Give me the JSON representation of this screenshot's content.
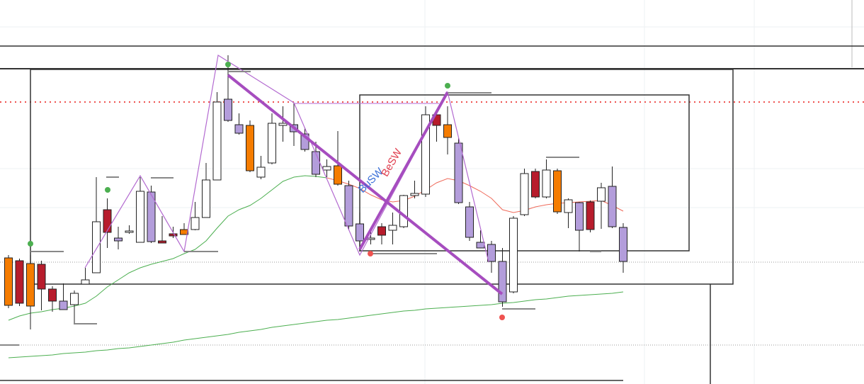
{
  "chart_data": {
    "type": "candlestick",
    "ylim": [
      0,
      542
    ],
    "candles": {
      "open": [
        178,
        174,
        170,
        169,
        134,
        117,
        112,
        141,
        157,
        246,
        206,
        214,
        200,
        271,
        202,
        212,
        218,
        218,
        235,
        288,
        402,
        366,
        365,
        292,
        312,
        365,
        366,
        353,
        328,
        302,
        308,
        280,
        226,
        204,
        222,
        217,
        222,
        266,
        268,
        380,
        366,
        340,
        250,
        200,
        197,
        173,
        130,
        239,
        300,
        264,
        301,
        242,
        256,
        257,
        258,
        279,
        221
      ],
      "high": [
        182,
        177,
        182,
        174,
        138,
        142,
        132,
        164,
        292,
        262,
        222,
        224,
        292,
        280,
        237,
        222,
        227,
        257,
        312,
        412,
        464,
        382,
        372,
        322,
        382,
        392,
        397,
        362,
        342,
        317,
        357,
        287,
        242,
        217,
        227,
        242,
        267,
        287,
        392,
        387,
        392,
        347,
        257,
        217,
        202,
        192,
        237,
        304,
        304,
        317,
        304,
        262,
        257,
        259,
        284,
        307,
        227
      ],
      "low": [
        107,
        110,
        77,
        104,
        102,
        105,
        84,
        141,
        157,
        192,
        190,
        212,
        200,
        199,
        199,
        206,
        211,
        217,
        235,
        288,
        370,
        352,
        299,
        289,
        310,
        342,
        336,
        328,
        292,
        292,
        280,
        217,
        187,
        197,
        197,
        197,
        220,
        262,
        264,
        342,
        324,
        254,
        202,
        192,
        157,
        109,
        128,
        237,
        262,
        262,
        240,
        220,
        187,
        214,
        219,
        220,
        157
      ],
      "close": [
        111,
        114,
        110,
        134,
        117,
        105,
        128,
        147,
        229,
        214,
        202,
        216,
        272,
        201,
        199,
        209,
        211,
        235,
        288,
        398,
        372,
        354,
        301,
        306,
        368,
        368,
        356,
        331,
        296,
        307,
        282,
        223,
        202,
        206,
        210,
        224,
        266,
        269,
        380,
        365,
        348,
        256,
        207,
        192,
        173,
        116,
        234,
        297,
        264,
        302,
        243,
        260,
        217,
        218,
        277,
        222,
        173
      ],
      "colors": [
        "#f57c00",
        "#b71c2c",
        "#f57c00",
        "#b71c2c",
        "#b71c2c",
        "#b39ddb",
        "#ffffff",
        "#ffffff",
        "#ffffff",
        "#b71c2c",
        "#b39ddb",
        "#ffffff",
        "#ffffff",
        "#b39ddb",
        "#b71c2c",
        "#b71c2c",
        "#f57c00",
        "#ffffff",
        "#ffffff",
        "#ffffff",
        "#b39ddb",
        "#b39ddb",
        "#f57c00",
        "#ffffff",
        "#ffffff",
        "#ffffff",
        "#b39ddb",
        "#b39ddb",
        "#b39ddb",
        "#ffffff",
        "#f57c00",
        "#b39ddb",
        "#b39ddb",
        "#ffffff",
        "#b71c2c",
        "#ffffff",
        "#ffffff",
        "#ffffff",
        "#ffffff",
        "#b71c2c",
        "#f57c00",
        "#b39ddb",
        "#b39ddb",
        "#b39ddb",
        "#b39ddb",
        "#b39ddb",
        "#ffffff",
        "#ffffff",
        "#b71c2c",
        "#ffffff",
        "#f57c00",
        "#ffffff",
        "#b39ddb",
        "#b71c2c",
        "#ffffff",
        "#b39ddb",
        "#b39ddb"
      ]
    },
    "series": [
      {
        "color": "#4caf50",
        "values": [
          37,
          38,
          39,
          40,
          41,
          43,
          44,
          45,
          47,
          48,
          50,
          51,
          53,
          55,
          57,
          59,
          62,
          64,
          66,
          68,
          70,
          73,
          75,
          77,
          80,
          82,
          84,
          86,
          88,
          90,
          91,
          93,
          95,
          97,
          99,
          101,
          103,
          104,
          106,
          107,
          108,
          109,
          110,
          111,
          112,
          114,
          115,
          117,
          119,
          120,
          122,
          124,
          125,
          126,
          127,
          128,
          130
        ]
      },
      {
        "color": "#4caf50",
        "values": [
          90,
          96,
          100,
          102,
          105,
          107,
          110,
          114,
          124,
          137,
          147,
          157,
          164,
          169,
          173,
          177,
          184,
          190,
          202,
          220,
          237,
          246,
          252,
          262,
          274,
          286,
          292,
          294,
          293,
          291,
          null,
          null,
          null,
          null,
          null,
          null,
          null,
          null,
          null,
          null,
          null,
          null,
          null,
          null,
          null,
          null,
          null,
          null,
          null,
          null,
          null,
          null,
          null,
          null,
          null,
          null,
          null
        ]
      },
      {
        "color": "#ef6a5a",
        "values": [
          null,
          null,
          null,
          null,
          null,
          null,
          null,
          null,
          null,
          null,
          null,
          null,
          null,
          null,
          null,
          null,
          null,
          null,
          null,
          null,
          null,
          null,
          null,
          null,
          null,
          null,
          null,
          null,
          null,
          291,
          287,
          282,
          276,
          267,
          260,
          257,
          259,
          265,
          274,
          284,
          290,
          287,
          280,
          272,
          262,
          246,
          242,
          245,
          250,
          253,
          255,
          256,
          257,
          258,
          259,
          252,
          244
        ]
      }
    ],
    "annotations": [
      {
        "text": "BuSW",
        "color": "#3a6fd8"
      },
      {
        "text": "BeSW",
        "color": "#e04050"
      }
    ]
  }
}
